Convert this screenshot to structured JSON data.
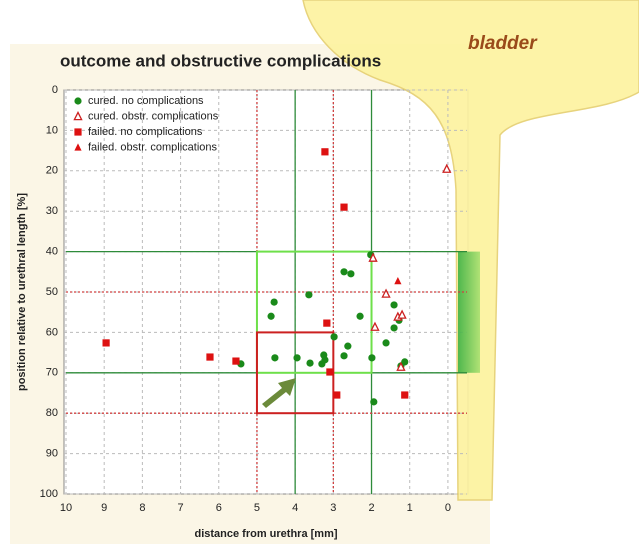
{
  "chart_data": {
    "type": "scatter",
    "title": "outcome and obstructive complications",
    "annotation": "bladder",
    "xlabel": "distance from urethra [mm]",
    "ylabel": "position relative to urethral length [%]",
    "xlim": [
      10,
      -0.5
    ],
    "ylim": [
      0,
      100
    ],
    "y_inverted": true,
    "xticks": [
      10,
      9,
      8,
      7,
      6,
      5,
      4,
      3,
      2,
      1,
      0
    ],
    "yticks": [
      0,
      10,
      20,
      30,
      40,
      50,
      60,
      70,
      80,
      90,
      100
    ],
    "grid": true,
    "legend": "upper left",
    "vlines": [
      {
        "value": 4,
        "color": "#2e8b3a",
        "style": "solid"
      },
      {
        "value": 2,
        "color": "#2e8b3a",
        "style": "solid"
      },
      {
        "value": 5,
        "color": "#d04040",
        "style": "dashed"
      },
      {
        "value": 3,
        "color": "#d04040",
        "style": "dashed"
      }
    ],
    "hlines": [
      {
        "value": 40,
        "color": "#2e8b3a",
        "style": "solid"
      },
      {
        "value": 70,
        "color": "#2e8b3a",
        "style": "solid"
      },
      {
        "value": 50,
        "color": "#d04040",
        "style": "dashed"
      },
      {
        "value": 80,
        "color": "#d04040",
        "style": "dashed"
      }
    ],
    "regions": [
      {
        "x": [
          5,
          2
        ],
        "y": [
          40,
          70
        ],
        "color": "#6ee04a"
      },
      {
        "x": [
          5,
          3
        ],
        "y": [
          60,
          80
        ],
        "color": "#cc2020"
      }
    ],
    "series": [
      {
        "name": "cured. no complications",
        "color": "#1a8a1a",
        "marker": "circle",
        "x": [
          4.55,
          4.63,
          4.53,
          3.64,
          3.95,
          3.61,
          3.3,
          3.25,
          3.22,
          2.98,
          2.72,
          2.54,
          2.62,
          2.72,
          2.3,
          1.99,
          1.94,
          2.02,
          1.62,
          1.41,
          1.41,
          1.28,
          1.13,
          1.23,
          5.42
        ],
        "y": [
          52.5,
          56,
          66.3,
          50.7,
          66.3,
          67.6,
          67.8,
          65.6,
          66.8,
          61.1,
          45,
          45.5,
          63.4,
          65.8,
          56,
          66.3,
          77.2,
          40.8,
          62.6,
          53.2,
          58.9,
          57,
          67.3,
          68.3,
          67.8
        ]
      },
      {
        "name": "cured. obstr. complications",
        "color": "#cc2020",
        "marker": "open-triangle",
        "x": [
          0.03,
          1.96,
          1.62,
          1.91,
          1.31,
          1.2,
          1.23
        ],
        "y": [
          19.6,
          41.6,
          50.5,
          58.7,
          56.2,
          55.7,
          68.6
        ]
      },
      {
        "name": "failed. no complications",
        "color": "#dd1111",
        "marker": "square",
        "x": [
          3.22,
          2.72,
          8.95,
          6.23,
          5.55,
          3.17,
          3.09,
          2.91,
          1.13
        ],
        "y": [
          15.3,
          29,
          62.6,
          66.1,
          67.1,
          57.7,
          69.8,
          75.5,
          75.5
        ]
      },
      {
        "name": "failed. obstr. complications",
        "color": "#dd1111",
        "marker": "triangle",
        "x": [
          1.31
        ],
        "y": [
          47.3
        ]
      }
    ]
  }
}
